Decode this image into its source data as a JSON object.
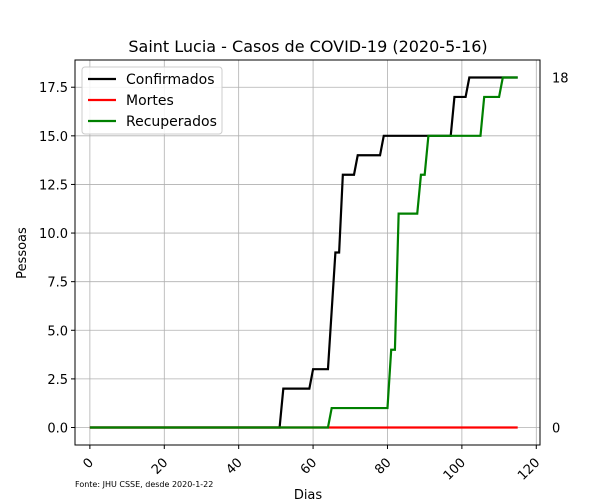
{
  "chart_data": {
    "type": "line",
    "title": "Saint Lucia - Casos de COVID-19 (2020-5-16)",
    "xlabel": "Dias",
    "ylabel": "Pessoas",
    "footnote": "Fonte: JHU CSSE, desde 2020-1-22",
    "xlim": [
      -4,
      121
    ],
    "ylim": [
      -0.9,
      18.9
    ],
    "xticks": [
      0,
      20,
      40,
      60,
      80,
      100,
      120
    ],
    "yticks": [
      0.0,
      2.5,
      5.0,
      7.5,
      10.0,
      12.5,
      15.0,
      17.5
    ],
    "xtick_labels": [
      "0",
      "20",
      "40",
      "60",
      "80",
      "100",
      "120"
    ],
    "ytick_labels": [
      "0.0",
      "2.5",
      "5.0",
      "7.5",
      "10.0",
      "12.5",
      "15.0",
      "17.5"
    ],
    "grid": true,
    "legend_position": "upper-left",
    "end_labels": [
      {
        "value": 18,
        "text": "18"
      },
      {
        "value": 0,
        "text": "0"
      }
    ],
    "series": [
      {
        "name": "Confirmados",
        "color": "#000000",
        "points": [
          [
            0,
            0
          ],
          [
            51,
            0
          ],
          [
            52,
            2
          ],
          [
            59,
            2
          ],
          [
            60,
            3
          ],
          [
            64,
            3
          ],
          [
            66,
            9
          ],
          [
            67,
            9
          ],
          [
            68,
            13
          ],
          [
            71,
            13
          ],
          [
            72,
            14
          ],
          [
            78,
            14
          ],
          [
            79,
            15
          ],
          [
            97,
            15
          ],
          [
            98,
            17
          ],
          [
            101,
            17
          ],
          [
            102,
            18
          ],
          [
            115,
            18
          ]
        ]
      },
      {
        "name": "Mortes",
        "color": "#ff0000",
        "points": [
          [
            0,
            0
          ],
          [
            115,
            0
          ]
        ]
      },
      {
        "name": "Recuperados",
        "color": "#008000",
        "points": [
          [
            0,
            0
          ],
          [
            64,
            0
          ],
          [
            65,
            1
          ],
          [
            80,
            1
          ],
          [
            81,
            4
          ],
          [
            82,
            4
          ],
          [
            83,
            11
          ],
          [
            88,
            11
          ],
          [
            89,
            13
          ],
          [
            90,
            13
          ],
          [
            91,
            15
          ],
          [
            105,
            15
          ],
          [
            106,
            17
          ],
          [
            110,
            17
          ],
          [
            111,
            18
          ],
          [
            115,
            18
          ]
        ]
      }
    ]
  }
}
